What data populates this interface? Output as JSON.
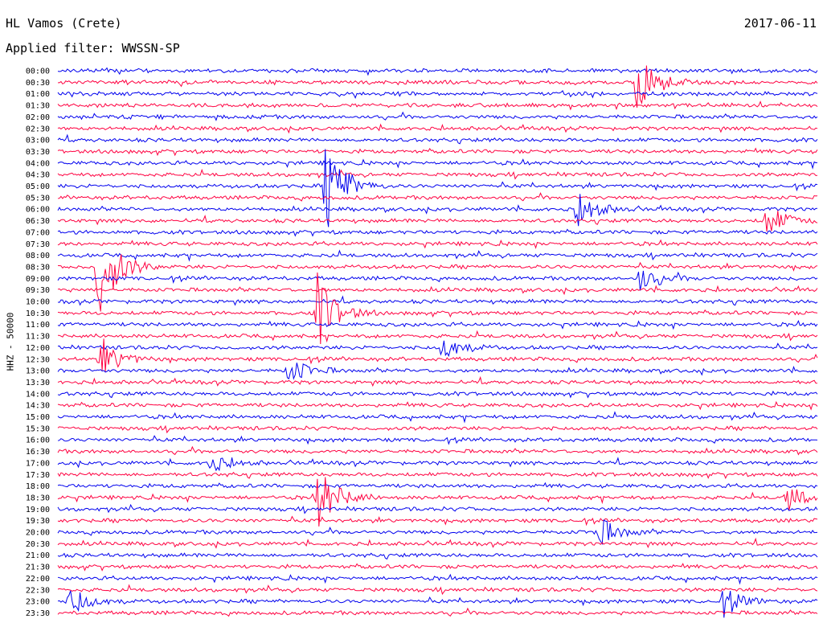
{
  "header": {
    "station": "HL Vamos (Crete)",
    "date": "2017-06-11",
    "filter": "Applied filter: WWSSN-SP"
  },
  "colors": {
    "odd_trace": "#0000ee",
    "even_trace": "#ff0040"
  },
  "chart_data": {
    "type": "line",
    "title": "",
    "ylabel": "HHZ - 50000",
    "xlabel": "",
    "grid": false,
    "legend": "none",
    "rows": [
      "00:00",
      "00:30",
      "01:00",
      "01:30",
      "02:00",
      "02:30",
      "03:00",
      "03:30",
      "04:00",
      "04:30",
      "05:00",
      "05:30",
      "06:00",
      "06:30",
      "07:00",
      "07:30",
      "08:00",
      "08:30",
      "09:00",
      "09:30",
      "10:00",
      "10:30",
      "11:00",
      "11:30",
      "12:00",
      "12:30",
      "13:00",
      "13:30",
      "14:00",
      "14:30",
      "15:00",
      "15:30",
      "16:00",
      "16:30",
      "17:00",
      "17:30",
      "18:00",
      "18:30",
      "19:00",
      "19:30",
      "20:00",
      "20:30",
      "21:00",
      "21:30",
      "22:00",
      "22:30",
      "23:00",
      "23:30"
    ],
    "trace_minutes": 30,
    "events": [
      {
        "row": "00:30",
        "minute": 22.9,
        "amplitude": 1.6
      },
      {
        "row": "05:00",
        "minute": 10.6,
        "amplitude": 2.2
      },
      {
        "row": "06:00",
        "minute": 20.5,
        "amplitude": 0.9
      },
      {
        "row": "06:30",
        "minute": 28.0,
        "amplitude": 0.8
      },
      {
        "row": "08:30",
        "minute": 1.6,
        "amplitude": 2.6
      },
      {
        "row": "09:00",
        "minute": 23.0,
        "amplitude": 0.7
      },
      {
        "row": "10:30",
        "minute": 10.2,
        "amplitude": 1.9
      },
      {
        "row": "12:00",
        "minute": 15.2,
        "amplitude": 0.6
      },
      {
        "row": "12:30",
        "minute": 1.7,
        "amplitude": 1.0
      },
      {
        "row": "13:00",
        "minute": 9.1,
        "amplitude": 0.7
      },
      {
        "row": "17:00",
        "minute": 6.0,
        "amplitude": 0.5
      },
      {
        "row": "18:30",
        "minute": 10.3,
        "amplitude": 1.5
      },
      {
        "row": "18:30",
        "minute": 28.8,
        "amplitude": 0.6
      },
      {
        "row": "20:00",
        "minute": 21.3,
        "amplitude": 0.8
      },
      {
        "row": "23:00",
        "minute": 0.5,
        "amplitude": 0.7
      },
      {
        "row": "23:00",
        "minute": 26.3,
        "amplitude": 0.6
      }
    ]
  }
}
